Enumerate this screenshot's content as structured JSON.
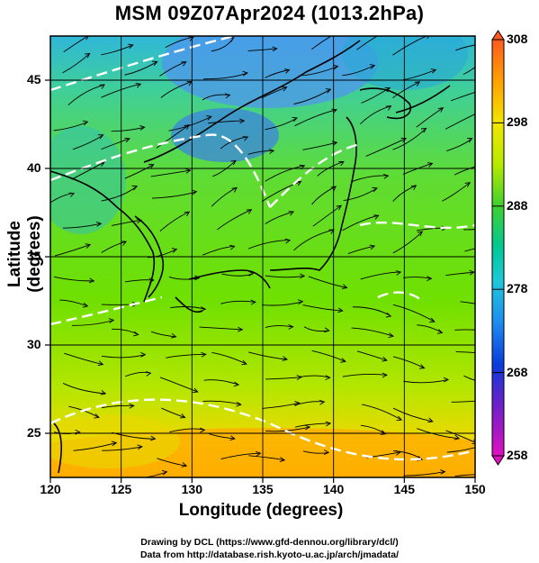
{
  "title": "MSM 09Z07Apr2024 (1013.2hPa)",
  "x_axis": {
    "label": "Longitude (degrees)",
    "ticks": [
      "120",
      "125",
      "130",
      "135",
      "140",
      "145",
      "150"
    ]
  },
  "y_axis": {
    "label": "Latitude  (degrees)",
    "ticks": [
      "25",
      "30",
      "35",
      "40",
      "45"
    ]
  },
  "colorbar": {
    "ticks": [
      "308",
      "298",
      "288",
      "278",
      "268",
      "258"
    ],
    "range": [
      258,
      308
    ]
  },
  "credits": {
    "line1": "Drawing by DCL (https://www.gfd-dennou.org/library/dcl/)",
    "line2": "Data from http://database.rish.kyoto-u.ac.jp/arch/jmadata/"
  },
  "map": {
    "lon_range": [
      120,
      150
    ],
    "lat_range": [
      22.5,
      47.5
    ],
    "colors": {
      "land_outline": "#000000",
      "contour": "#ffffff",
      "cold": "#2f6fe0",
      "cool": "#25c7b8",
      "mild": "#6fe000",
      "warm": "#d8e600",
      "hot": "#ffb400"
    }
  }
}
